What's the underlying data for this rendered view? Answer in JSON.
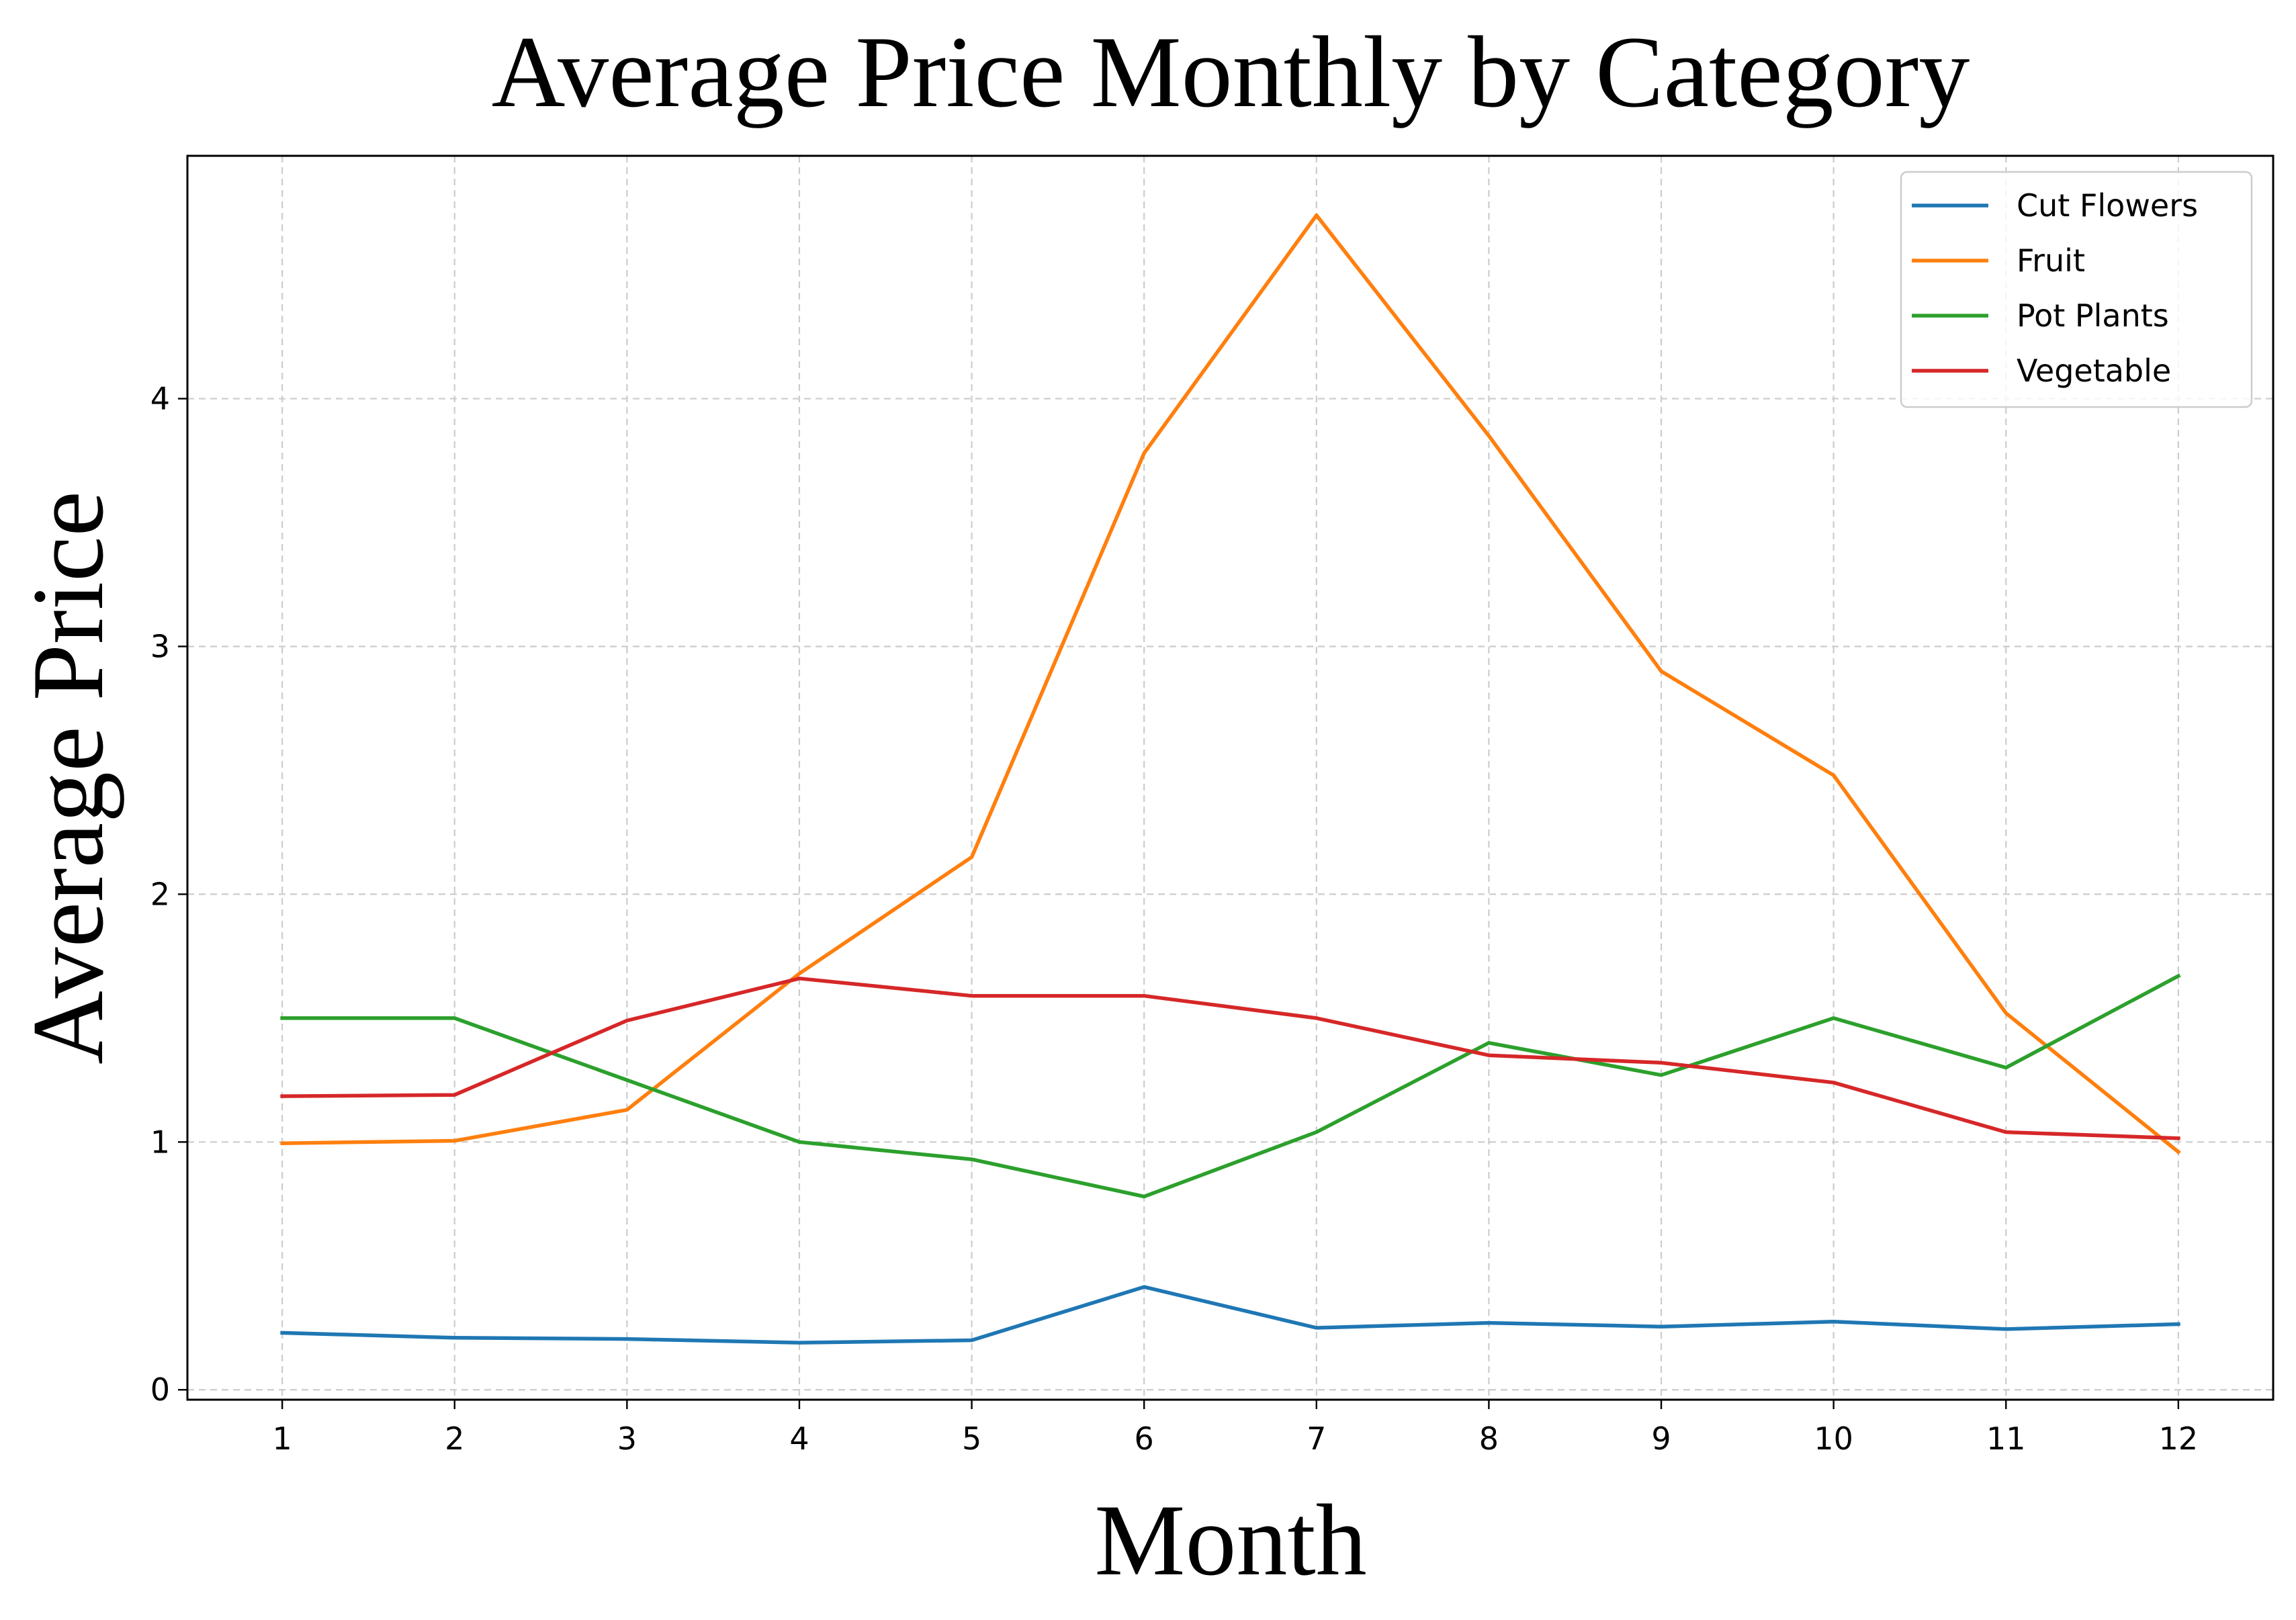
{
  "chart_data": {
    "type": "line",
    "title": "Average Price Monthly by Category",
    "xlabel": "Month",
    "ylabel": "Average Price",
    "x": [
      1,
      2,
      3,
      4,
      5,
      6,
      7,
      8,
      9,
      10,
      11,
      12
    ],
    "x_tick_labels": [
      "1",
      "2",
      "3",
      "4",
      "5",
      "6",
      "7",
      "8",
      "9",
      "10",
      "11",
      "12"
    ],
    "y_ticks": [
      0,
      1,
      2,
      3,
      4
    ],
    "y_tick_labels": [
      "0",
      "1",
      "2",
      "3",
      "4"
    ],
    "xlim": [
      0.45,
      12.55
    ],
    "ylim": [
      -0.04,
      4.98
    ],
    "grid": true,
    "legend_position": "top-right",
    "series": [
      {
        "name": "Cut Flowers",
        "color": "#1f77b4",
        "values": [
          0.23,
          0.21,
          0.205,
          0.19,
          0.2,
          0.415,
          0.25,
          0.27,
          0.255,
          0.275,
          0.245,
          0.265
        ]
      },
      {
        "name": "Fruit",
        "color": "#ff7f0e",
        "values": [
          0.995,
          1.005,
          1.13,
          1.68,
          2.15,
          3.78,
          4.74,
          3.85,
          2.9,
          2.48,
          1.52,
          0.96
        ]
      },
      {
        "name": "Pot Plants",
        "color": "#2ca02c",
        "values": [
          1.5,
          1.5,
          1.25,
          1.0,
          0.93,
          0.78,
          1.04,
          1.4,
          1.27,
          1.5,
          1.3,
          1.67
        ]
      },
      {
        "name": "Vegetable",
        "color": "#d62728",
        "values": [
          1.185,
          1.19,
          1.49,
          1.66,
          1.59,
          1.59,
          1.5,
          1.35,
          1.32,
          1.24,
          1.04,
          1.015
        ]
      }
    ]
  }
}
